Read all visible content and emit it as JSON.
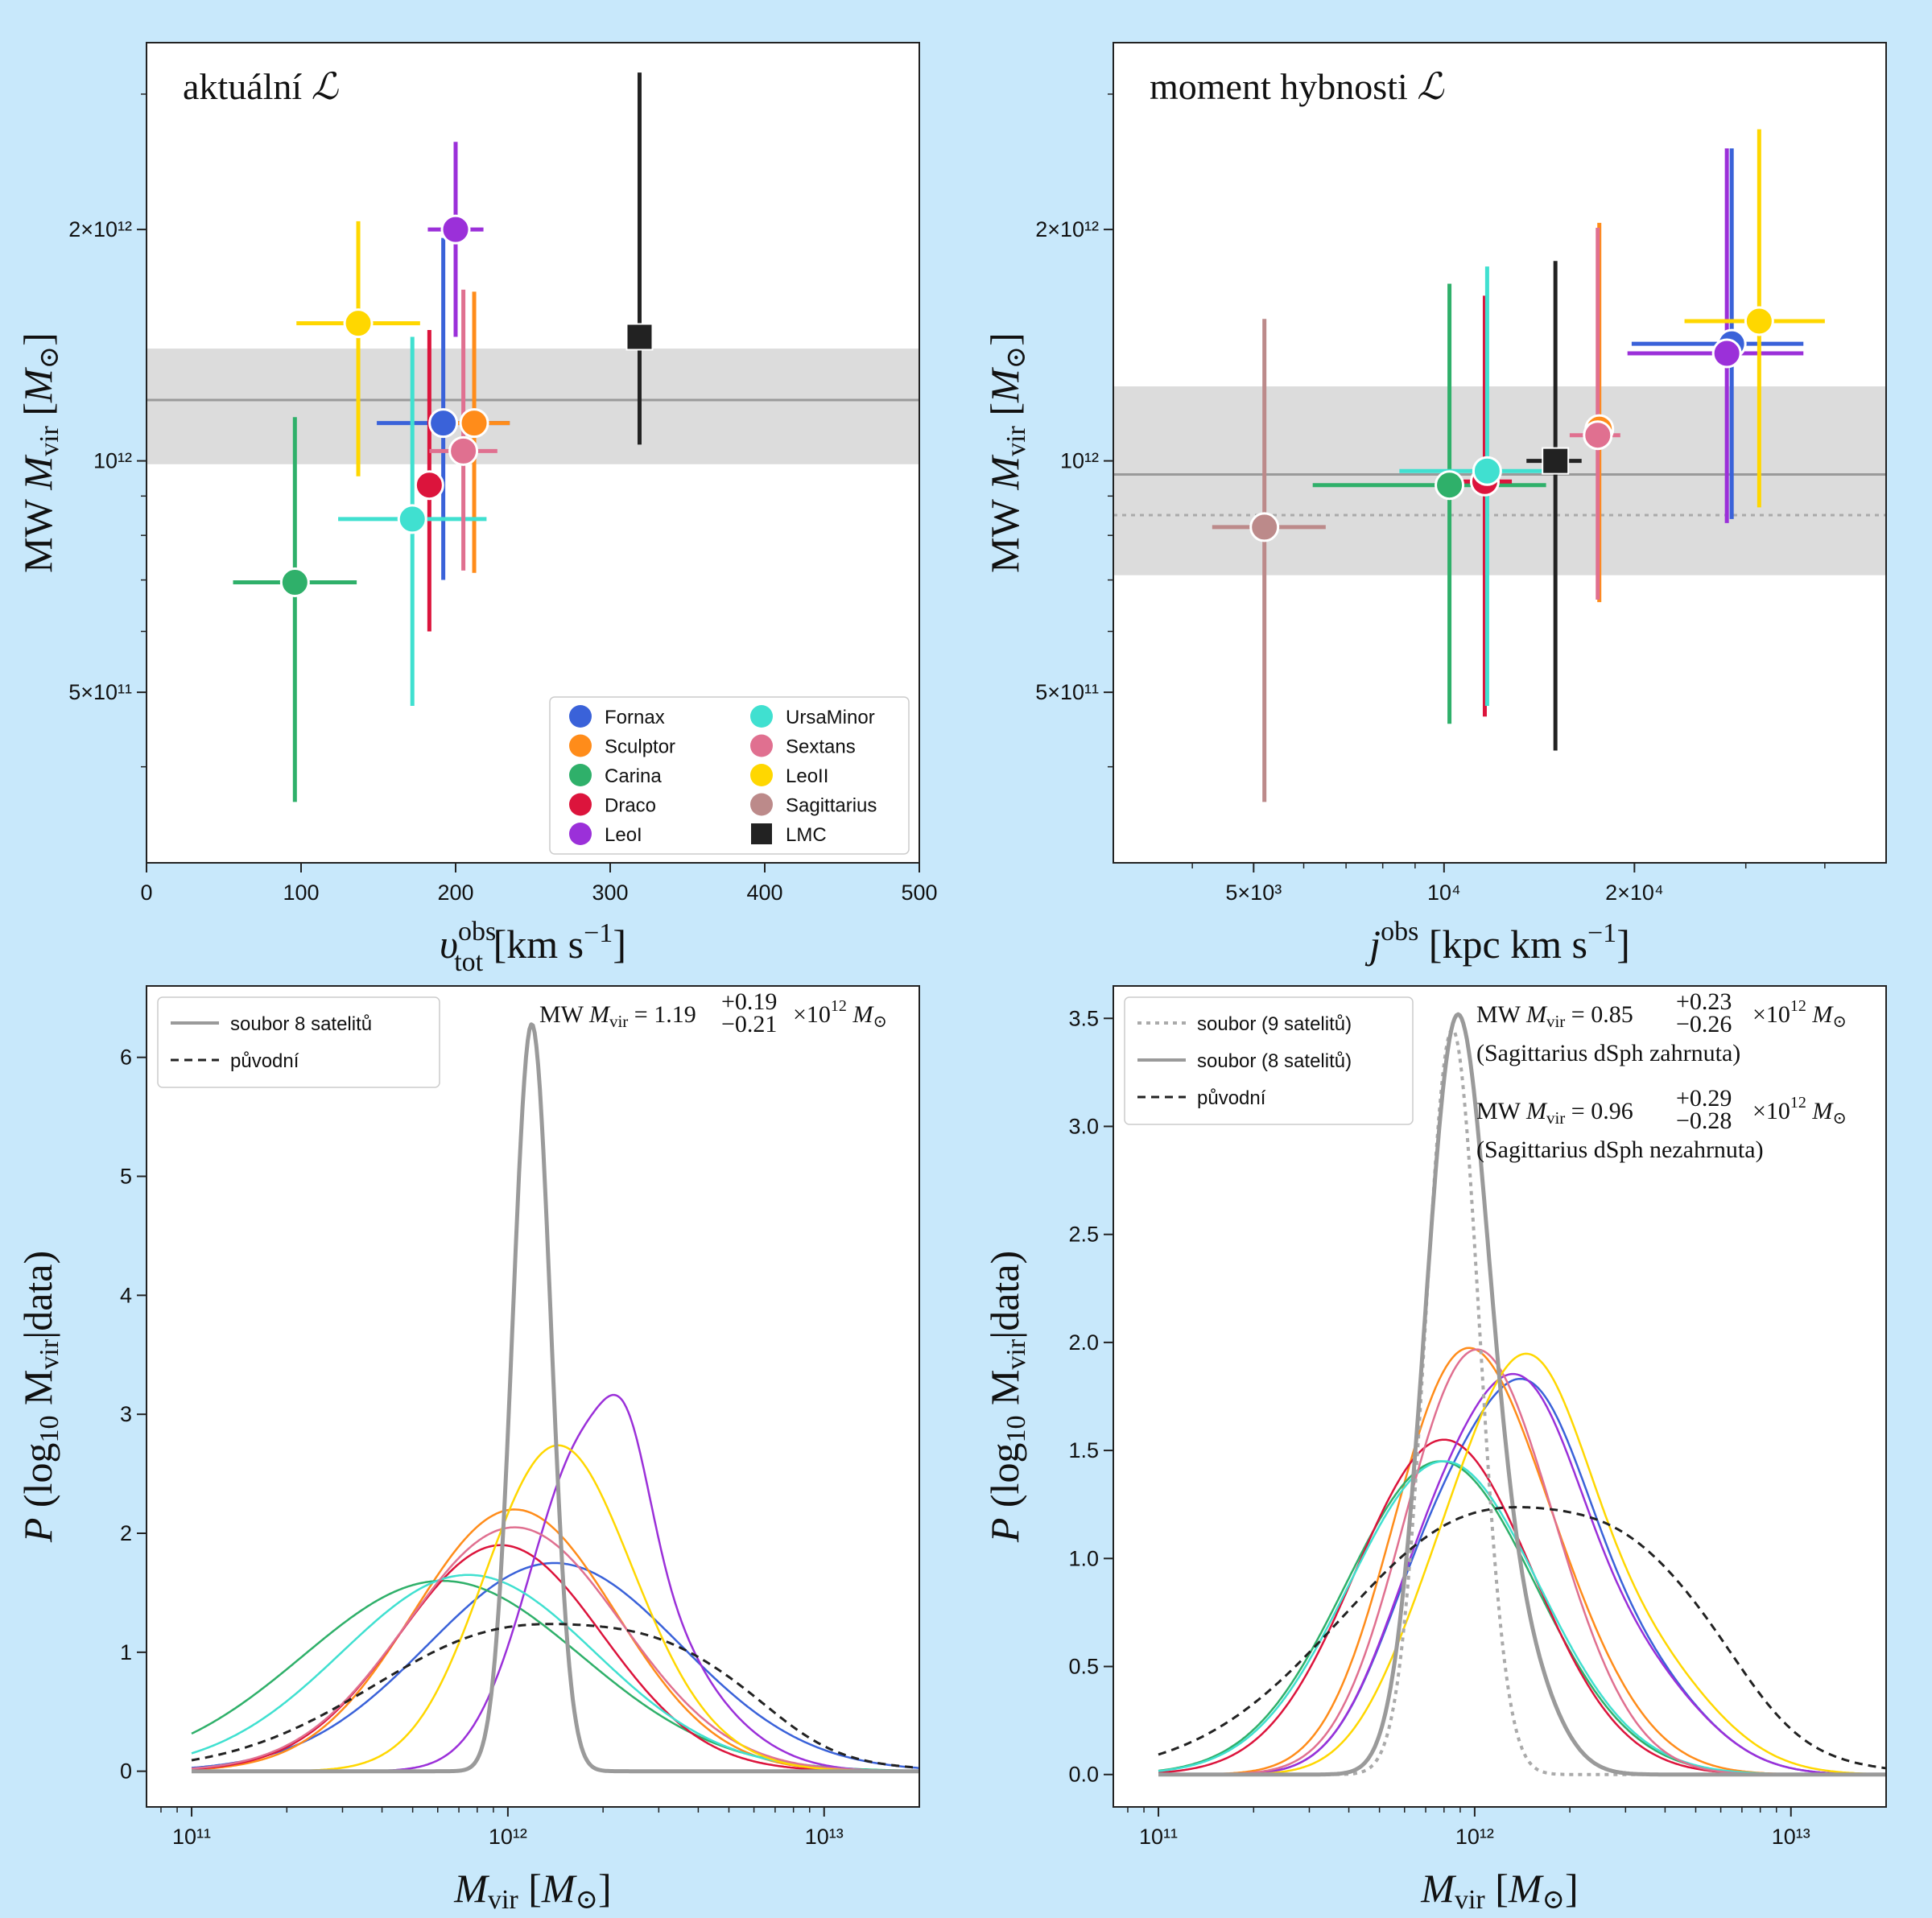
{
  "colors": {
    "Fornax": "#3a62d9",
    "Sculptor": "#ff8c1a",
    "Carina": "#2fb06a",
    "Draco": "#dc143c",
    "LeoI": "#9b30d9",
    "UrsaMinor": "#40e0d0",
    "Sextans": "#e07090",
    "LeoII": "#ffd700",
    "Sagittarius": "#bc8a8a",
    "LMC": "#222222",
    "ensemble": "#9a9a9a",
    "original": "#222222",
    "band": "#dcdcdc"
  },
  "chart_data": [
    {
      "type": "scatter",
      "title": "aktuální ℒ",
      "xlabel": "v_tot^obs [km s^-1]",
      "ylabel": "MW M_vir [M_⊙]",
      "xscale": "linear",
      "yscale": "log",
      "xlim": [
        0,
        500
      ],
      "ylim": [
        300000000000.0,
        3500000000000.0
      ],
      "xticks": [
        0,
        100,
        200,
        300,
        400,
        500
      ],
      "xtick_labels": [
        "0",
        "100",
        "200",
        "300",
        "400",
        "500"
      ],
      "yticks": [
        500000000000.0,
        1000000000000.0,
        2000000000000.0
      ],
      "ytick_labels": [
        "5×10¹¹",
        "10¹²",
        "2×10¹²"
      ],
      "band": {
        "center": 1200000000000.0,
        "low": 990000000000.0,
        "high": 1400000000000.0
      },
      "dotted_line": null,
      "legend_position": "lower-right",
      "points": [
        {
          "name": "Fornax",
          "x": 192,
          "y": 1120000000000.0,
          "xerr": [
            43,
            43
          ],
          "ylo": 700000000000.0,
          "yhi": 1950000000000.0
        },
        {
          "name": "Sculptor",
          "x": 212,
          "y": 1120000000000.0,
          "xerr": [
            23,
            23
          ],
          "ylo": 715000000000.0,
          "yhi": 1660000000000.0
        },
        {
          "name": "Carina",
          "x": 96,
          "y": 695000000000.0,
          "xerr": [
            40,
            40
          ],
          "ylo": 360000000000.0,
          "yhi": 1140000000000.0
        },
        {
          "name": "Draco",
          "x": 183,
          "y": 930000000000.0,
          "xerr": [
            4,
            4
          ],
          "ylo": 600000000000.0,
          "yhi": 1480000000000.0
        },
        {
          "name": "LeoI",
          "x": 200,
          "y": 2000000000000.0,
          "xerr": [
            18,
            18
          ],
          "ylo": 1450000000000.0,
          "yhi": 2600000000000.0
        },
        {
          "name": "UrsaMinor",
          "x": 172,
          "y": 840000000000.0,
          "xerr": [
            48,
            48
          ],
          "ylo": 480000000000.0,
          "yhi": 1450000000000.0
        },
        {
          "name": "Sextans",
          "x": 205,
          "y": 1030000000000.0,
          "xerr": [
            22,
            22
          ],
          "ylo": 720000000000.0,
          "yhi": 1670000000000.0
        },
        {
          "name": "LeoII",
          "x": 137,
          "y": 1510000000000.0,
          "xerr": [
            40,
            40
          ],
          "ylo": 955000000000.0,
          "yhi": 2050000000000.0
        },
        {
          "name": "LMC",
          "x": 319,
          "y": 1450000000000.0,
          "xerr": [
            0,
            0
          ],
          "ylo": 1050000000000.0,
          "yhi": 3200000000000.0,
          "marker": "square"
        }
      ],
      "legend": [
        "Fornax",
        "Sculptor",
        "Carina",
        "Draco",
        "LeoI",
        "UrsaMinor",
        "Sextans",
        "LeoII",
        "Sagittarius",
        "LMC"
      ]
    },
    {
      "type": "scatter",
      "title": "moment hybnosti ℒ",
      "xlabel": "j^obs [kpc km s^-1]",
      "ylabel": "MW M_vir [M_⊙]",
      "xscale": "log",
      "yscale": "log",
      "xlim": [
        3000,
        50000
      ],
      "ylim": [
        300000000000.0,
        3500000000000.0
      ],
      "xticks": [
        5000,
        10000,
        20000
      ],
      "xtick_labels": [
        "5×10³",
        "10⁴",
        "2×10⁴"
      ],
      "yticks": [
        500000000000.0,
        1000000000000.0,
        2000000000000.0
      ],
      "ytick_labels": [
        "5×10¹¹",
        "10¹²",
        "2×10¹²"
      ],
      "band": {
        "center": 960000000000.0,
        "low": 710000000000.0,
        "high": 1250000000000.0
      },
      "dotted_line": 850000000000.0,
      "legend_position": "none",
      "points": [
        {
          "name": "Fornax",
          "x": 28500,
          "y": 1420000000000.0,
          "xlo": 19800,
          "xhi": 37000,
          "ylo": 840000000000.0,
          "yhi": 2550000000000.0
        },
        {
          "name": "Sculptor",
          "x": 17600,
          "y": 1100000000000.0,
          "xlo": 16800,
          "xhi": 18500,
          "ylo": 655000000000.0,
          "yhi": 2040000000000.0
        },
        {
          "name": "Carina",
          "x": 10200,
          "y": 930000000000.0,
          "xlo": 6200,
          "xhi": 14500,
          "ylo": 455000000000.0,
          "yhi": 1700000000000.0
        },
        {
          "name": "Draco",
          "x": 11600,
          "y": 940000000000.0,
          "xlo": 10400,
          "xhi": 12800,
          "ylo": 465000000000.0,
          "yhi": 1640000000000.0
        },
        {
          "name": "LeoI",
          "x": 28000,
          "y": 1380000000000.0,
          "xlo": 19500,
          "xhi": 37000,
          "ylo": 830000000000.0,
          "yhi": 2550000000000.0
        },
        {
          "name": "UrsaMinor",
          "x": 11700,
          "y": 970000000000.0,
          "xlo": 8500,
          "xhi": 15000,
          "ylo": 480000000000.0,
          "yhi": 1790000000000.0
        },
        {
          "name": "Sextans",
          "x": 17500,
          "y": 1080000000000.0,
          "xlo": 15800,
          "xhi": 19000,
          "ylo": 660000000000.0,
          "yhi": 2010000000000.0
        },
        {
          "name": "LeoII",
          "x": 31500,
          "y": 1520000000000.0,
          "xlo": 24000,
          "xhi": 40000,
          "ylo": 870000000000.0,
          "yhi": 2700000000000.0
        },
        {
          "name": "Sagittarius",
          "x": 5200,
          "y": 820000000000.0,
          "xlo": 4300,
          "xhi": 6500,
          "ylo": 360000000000.0,
          "yhi": 1530000000000.0
        },
        {
          "name": "LMC",
          "x": 15000,
          "y": 1000000000000.0,
          "xlo": 13500,
          "xhi": 16500,
          "ylo": 420000000000.0,
          "yhi": 1820000000000.0,
          "marker": "square"
        }
      ]
    },
    {
      "type": "line",
      "xlabel": "M_vir [M_⊙]",
      "ylabel": "P (log10 M_vir | data)",
      "xscale": "log",
      "yscale": "linear",
      "xlim": [
        72000000000.0,
        20000000000000.0
      ],
      "ylim": [
        -0.3,
        6.6
      ],
      "xticks": [
        100000000000.0,
        1000000000000.0,
        10000000000000.0
      ],
      "xtick_labels": [
        "10¹¹",
        "10¹²",
        "10¹³"
      ],
      "yticks": [
        0,
        1,
        2,
        3,
        4,
        5,
        6
      ],
      "ytick_labels": [
        "0",
        "1",
        "2",
        "3",
        "4",
        "5",
        "6"
      ],
      "legend_position": "upper-left",
      "legend": [
        {
          "label": "soubor 8 satelitů",
          "style": "solid-gray"
        },
        {
          "label": "původní",
          "style": "dashed-black"
        }
      ],
      "annotation": "MW M_vir = 1.19 +0.19 -0.21 ×10^12 M_⊙",
      "series": [
        {
          "name": "Fornax",
          "components": [
            [
              1400000000000.0,
              0.4,
              1.75
            ]
          ]
        },
        {
          "name": "Sculptor",
          "components": [
            [
              1050000000000.0,
              0.32,
              2.2
            ]
          ]
        },
        {
          "name": "Carina",
          "components": [
            [
              620000000000.0,
              0.44,
              1.6
            ]
          ]
        },
        {
          "name": "Draco",
          "components": [
            [
              950000000000.0,
              0.32,
              1.9
            ]
          ]
        },
        {
          "name": "LeoI",
          "components": [
            [
              1750000000000.0,
              0.18,
              2.5
            ],
            [
              2400000000000.0,
              0.07,
              0.6
            ],
            [
              3200000000000.0,
              0.22,
              0.65
            ]
          ]
        },
        {
          "name": "UrsaMinor",
          "components": [
            [
              750000000000.0,
              0.4,
              1.65
            ]
          ]
        },
        {
          "name": "Sextans",
          "components": [
            [
              1050000000000.0,
              0.34,
              2.05
            ]
          ]
        },
        {
          "name": "LeoII",
          "components": [
            [
              1350000000000.0,
              0.22,
              2.3
            ],
            [
              2200000000000.0,
              0.25,
              0.6
            ]
          ]
        },
        {
          "name": "ensemble",
          "components": [
            [
              1190000000000.0,
              0.06,
              6.28
            ]
          ]
        },
        {
          "name": "original",
          "components": [
            [
              1100000000000.0,
              0.46,
              1.2
            ],
            [
              3500000000000.0,
              0.22,
              0.35
            ],
            [
              6000000000000.0,
              0.15,
              0.1
            ]
          ],
          "dashed": true
        }
      ]
    },
    {
      "type": "line",
      "xlabel": "M_vir [M_⊙]",
      "ylabel": "P (log10 M_vir | data)",
      "xscale": "log",
      "yscale": "linear",
      "xlim": [
        72000000000.0,
        20000000000000.0
      ],
      "ylim": [
        -0.15,
        3.65
      ],
      "xticks": [
        100000000000.0,
        1000000000000.0,
        10000000000000.0
      ],
      "xtick_labels": [
        "10¹¹",
        "10¹²",
        "10¹³"
      ],
      "yticks": [
        0.0,
        0.5,
        1.0,
        1.5,
        2.0,
        2.5,
        3.0,
        3.5
      ],
      "ytick_labels": [
        "0.0",
        "0.5",
        "1.0",
        "1.5",
        "2.0",
        "2.5",
        "3.0",
        "3.5"
      ],
      "legend_position": "upper-left",
      "legend": [
        {
          "label": "soubor (9 satelitů)",
          "style": "dotted-gray"
        },
        {
          "label": "soubor (8 satelitů)",
          "style": "solid-gray"
        },
        {
          "label": "původní",
          "style": "dashed-black"
        }
      ],
      "annotations": [
        "MW M_vir = 0.85 +0.23 -0.26 ×10^12 M_⊙",
        "(Sagittarius dSph zahrnuta)",
        "MW M_vir = 0.96 +0.29 -0.28 ×10^12 M_⊙",
        "(Sagittarius dSph nezahrnuta)"
      ],
      "series": [
        {
          "name": "Fornax",
          "components": [
            [
              750000000000.0,
              0.18,
              0.9
            ],
            [
              1500000000000.0,
              0.18,
              1.4
            ],
            [
              3000000000000.0,
              0.22,
              0.5
            ]
          ]
        },
        {
          "name": "Sculptor",
          "components": [
            [
              800000000000.0,
              0.2,
              1.1
            ],
            [
              1300000000000.0,
              0.25,
              1.1
            ]
          ]
        },
        {
          "name": "Carina",
          "components": [
            [
              780000000000.0,
              0.3,
              1.45
            ]
          ]
        },
        {
          "name": "Draco",
          "components": [
            [
              800000000000.0,
              0.28,
              1.55
            ]
          ]
        },
        {
          "name": "LeoI",
          "components": [
            [
              750000000000.0,
              0.18,
              0.9
            ],
            [
              1450000000000.0,
              0.18,
              1.4
            ],
            [
              3000000000000.0,
              0.22,
              0.5
            ]
          ]
        },
        {
          "name": "UrsaMinor",
          "components": [
            [
              800000000000.0,
              0.3,
              1.45
            ]
          ]
        },
        {
          "name": "Sextans",
          "components": [
            [
              850000000000.0,
              0.2,
              1.2
            ],
            [
              1350000000000.0,
              0.22,
              1.0
            ]
          ]
        },
        {
          "name": "LeoII",
          "components": [
            [
              800000000000.0,
              0.18,
              0.7
            ],
            [
              1500000000000.0,
              0.18,
              1.45
            ],
            [
              3000000000000.0,
              0.24,
              0.6
            ]
          ]
        },
        {
          "name": "ensemble9",
          "components": [
            [
              850000000000.0,
              0.085,
              3.45
            ]
          ],
          "dotted": true
        },
        {
          "name": "ensemble",
          "components": [
            [
              870000000000.0,
              0.1,
              3.3
            ],
            [
              1300000000000.0,
              0.12,
              0.6
            ]
          ]
        },
        {
          "name": "original",
          "components": [
            [
              1100000000000.0,
              0.46,
              1.2
            ],
            [
              3500000000000.0,
              0.22,
              0.35
            ],
            [
              6000000000000.0,
              0.15,
              0.1
            ]
          ],
          "dashed": true
        }
      ]
    }
  ]
}
